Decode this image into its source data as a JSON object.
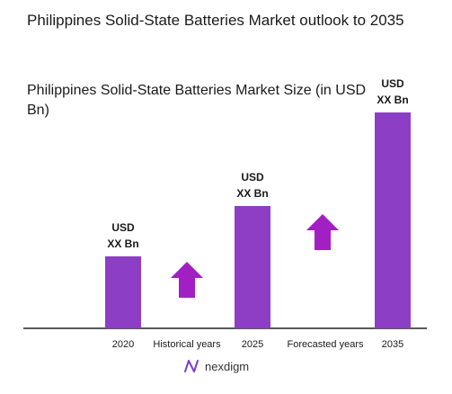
{
  "title": "Philippines Solid-State Batteries Market outlook to 2035",
  "subtitle": "Philippines Solid-State Batteries Market Size (in USD Bn)",
  "colors": {
    "bar": "#8c3fc4",
    "arrow": "#a21fc4",
    "axis": "#222222"
  },
  "chart_data": {
    "type": "bar",
    "categories": [
      "2020",
      "2025",
      "2035"
    ],
    "values": [
      1.0,
      1.7,
      3.0
    ],
    "value_labels": [
      [
        "USD",
        "XX Bn"
      ],
      [
        "USD",
        "XX Bn"
      ],
      [
        "USD",
        "XX Bn"
      ]
    ],
    "value_note": "relative bar heights; actual values undisclosed (USD XX Bn)",
    "period_labels": [
      "Historical years",
      "Forecasted years"
    ],
    "period_icons": [
      "up-arrow-icon",
      "up-arrow-icon"
    ],
    "ylim": [
      0,
      3.0
    ],
    "grid": false,
    "legend": "none"
  },
  "logo": {
    "text": "nexdigm",
    "icon": "nexdigm-logo-icon"
  }
}
